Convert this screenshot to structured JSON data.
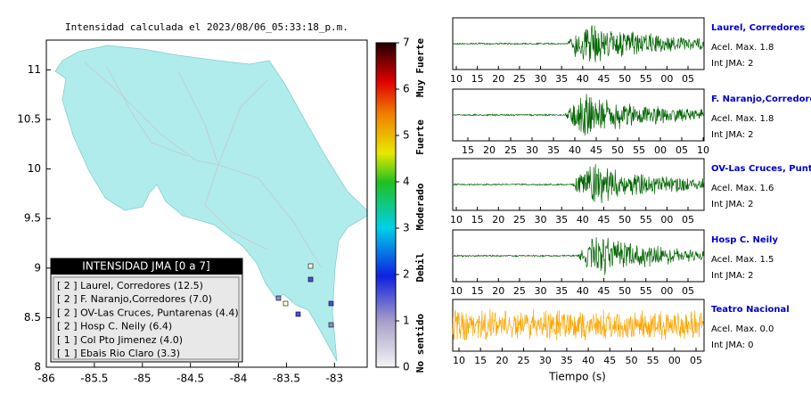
{
  "map": {
    "title": "Intensidad calculada el 2023/08/06_05:33:18_p.m.",
    "xlim": [
      -86,
      -82.66
    ],
    "ylim": [
      8,
      11.3
    ],
    "xticks": [
      -86,
      -85.5,
      -85,
      -84.5,
      -84,
      -83.5,
      -83
    ],
    "yticks": [
      8,
      8.5,
      9,
      9.5,
      10,
      10.5,
      11
    ]
  },
  "colorbar": {
    "lim": [
      0,
      7
    ],
    "ticks": [
      0,
      1,
      2,
      3,
      4,
      5,
      6,
      7
    ],
    "labels": [
      "No sentido",
      "Debil",
      "Moderado",
      "Fuerte",
      "Muy Fuerte"
    ]
  },
  "legend": {
    "title": "INTENSIDAD JMA [0 a 7]",
    "items": [
      "[ 2 ]  Laurel, Corredores (12.5)",
      "[ 2 ]  F. Naranjo,Corredores (7.0)",
      "[ 2 ]  OV-Las Cruces, Puntarenas (4.4)",
      "[ 2 ]  Hosp C. Neily (6.4)",
      "[ 1 ]  Col Pto Jimenez (4.0)",
      "[ 1 ]  Ebais Rio Claro (3.3)"
    ]
  },
  "seismograms": {
    "panels": [
      {
        "station": "Laurel, Corredores",
        "acel": "Acel. Max. 1.8",
        "int": "Int JMA: 2",
        "ticks": [
          "10",
          "15",
          "20",
          "25",
          "30",
          "35",
          "40",
          "45",
          "50",
          "55",
          "00",
          "05"
        ]
      },
      {
        "station": "F. Naranjo,Corredores",
        "acel": "Acel. Max. 1.8",
        "int": "Int JMA: 2",
        "ticks": [
          "15",
          "20",
          "25",
          "30",
          "35",
          "40",
          "45",
          "50",
          "55",
          "00",
          "05",
          "10"
        ]
      },
      {
        "station": "OV-Las Cruces, Puntar",
        "acel": "Acel. Max. 1.6",
        "int": "Int JMA: 2",
        "ticks": [
          "10",
          "15",
          "20",
          "25",
          "30",
          "35",
          "40",
          "45",
          "50",
          "55",
          "00",
          "05"
        ]
      },
      {
        "station": "Hosp C. Neily",
        "acel": "Acel. Max. 1.5",
        "int": "Int JMA: 2",
        "ticks": [
          "10",
          "15",
          "20",
          "25",
          "30",
          "35",
          "40",
          "45",
          "50",
          "55",
          "00",
          "05"
        ]
      },
      {
        "station": "Teatro Nacional",
        "acel": "Acel. Max. 0.0",
        "int": "Int JMA: 0",
        "ticks": [
          "10",
          "15",
          "20",
          "25",
          "30",
          "35",
          "40",
          "45",
          "50",
          "55",
          "00",
          "05"
        ]
      }
    ],
    "xlabel": "Tiempo (s)"
  }
}
